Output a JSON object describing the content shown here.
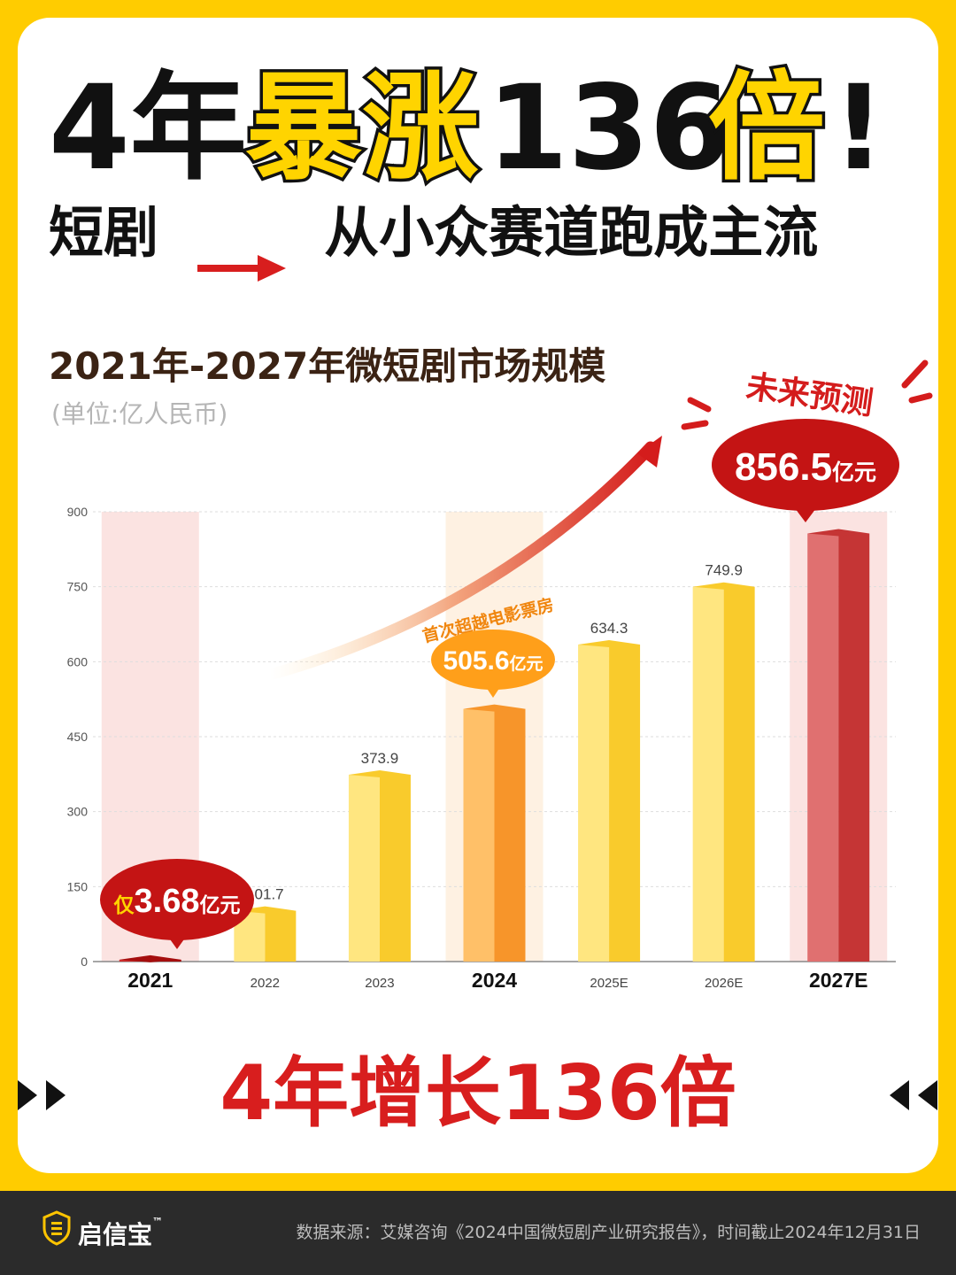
{
  "headline": {
    "part1": "4年",
    "part2": "暴涨",
    "part3": "136",
    "part4": "倍",
    "part5": "!"
  },
  "subline": {
    "left": "短剧",
    "right": "从小众赛道跑成主流"
  },
  "chart_data": {
    "type": "bar",
    "title": "2021年-2027年微短剧市场规模",
    "unit_label": "(单位:亿人民币)",
    "categories": [
      "2021",
      "2022",
      "2023",
      "2024",
      "2025E",
      "2026E",
      "2027E"
    ],
    "values": [
      3.68,
      101.7,
      373.9,
      505.6,
      634.3,
      749.9,
      856.5
    ],
    "value_labels": [
      "",
      "101.7",
      "373.9",
      "",
      "634.3",
      "749.9",
      ""
    ],
    "highlight_categories": [
      "2021",
      "2024",
      "2027E"
    ],
    "ylim": [
      0,
      900
    ],
    "yticks": [
      0,
      150,
      300,
      450,
      600,
      750,
      900
    ],
    "grid": true,
    "colors": {
      "regular": "#FFDE55",
      "highlight_2024": "#FFAD3A",
      "highlight_2027": "#D84848",
      "highlight_2021": "#C41414"
    },
    "callouts": {
      "c2021_prefix": "仅",
      "c2021_value": "3.68",
      "c2021_unit": "亿元",
      "c2024_note": "首次超越电影票房",
      "c2024_value": "505.6",
      "c2024_unit": "亿元",
      "c2027_note": "未来预测",
      "c2027_value": "856.5",
      "c2027_unit": "亿元"
    }
  },
  "bottom_banner": "4年增长136倍",
  "footer": {
    "logo_text": "启信宝",
    "logo_tm": "™",
    "source": "数据来源：艾媒咨询《2024中国微短剧产业研究报告》，时间截止2024年12月31日"
  }
}
